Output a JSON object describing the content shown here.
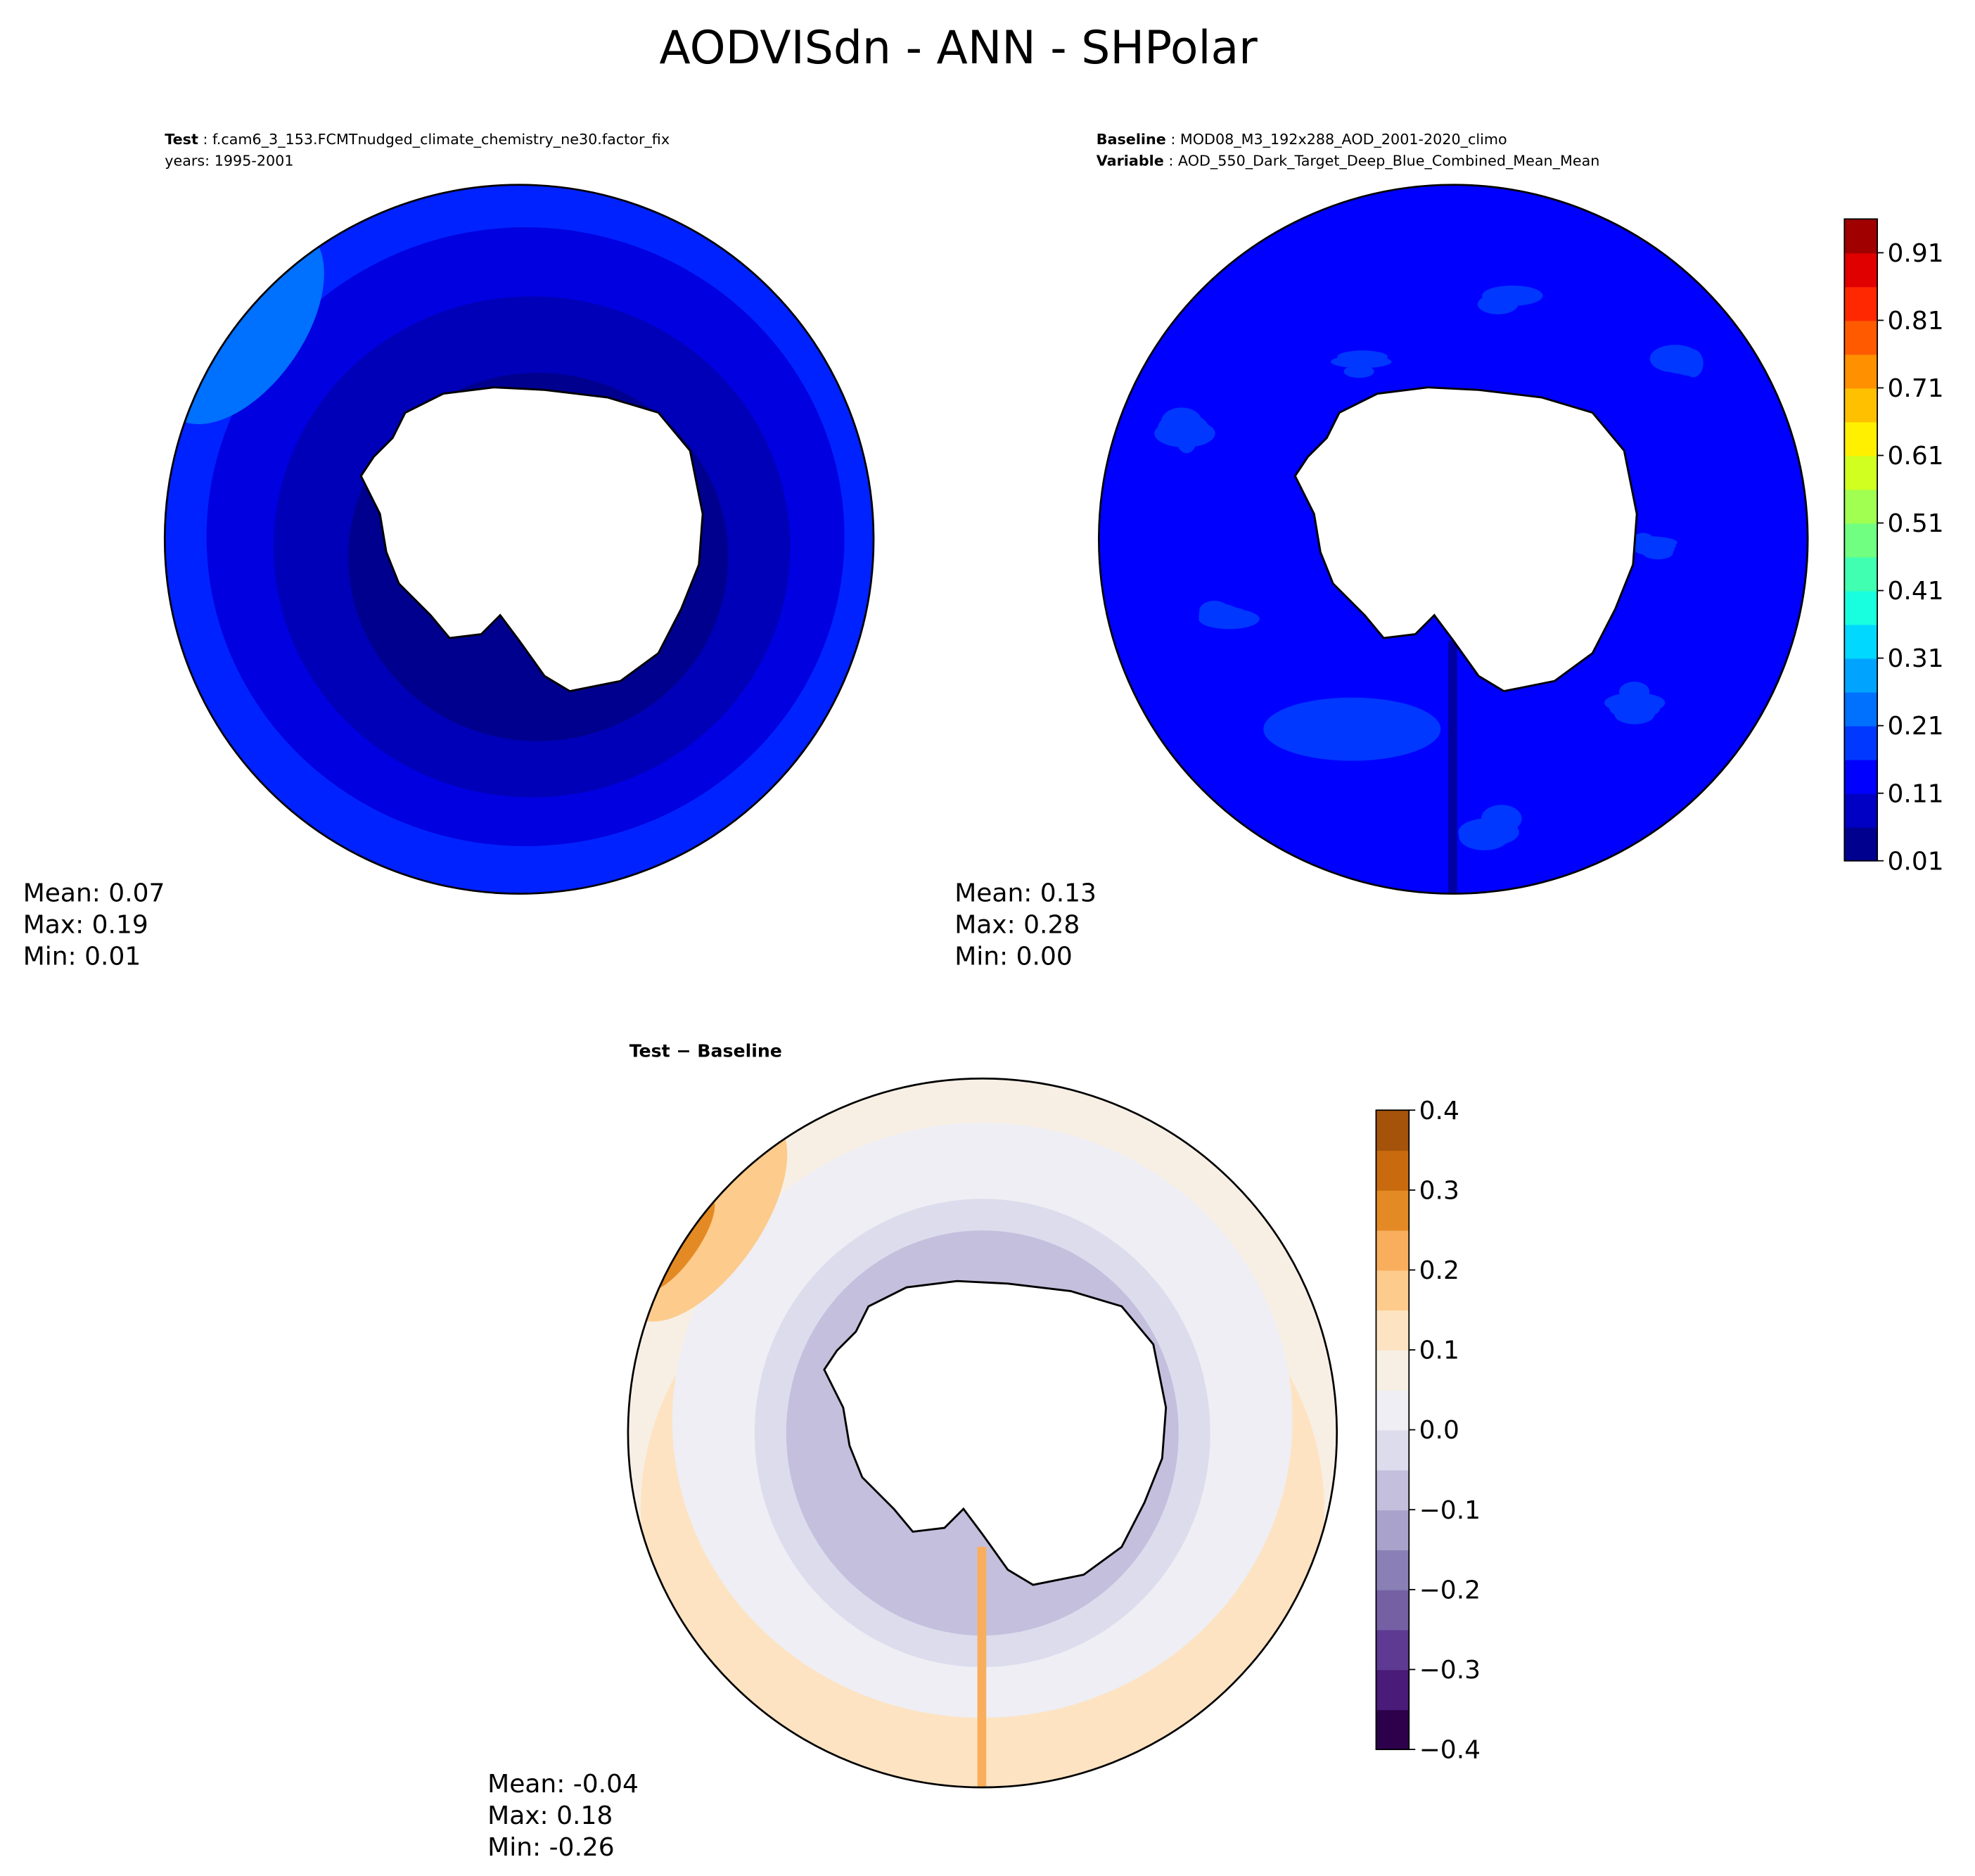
{
  "title": "AODVISdn - ANN - SHPolar",
  "chart_data": [
    {
      "type": "heatmap",
      "projection": "south polar stereographic",
      "header": {
        "label": "Test",
        "value": "f.cam6_3_153.FCMTnudged_climate_chemistry_ne30.factor_fix",
        "line2": "years: 1995-2001"
      },
      "stats": {
        "mean": "Mean:  0.07",
        "max": "Max:  0.19",
        "min": "Min:  0.01"
      },
      "bands": [
        {
          "value": 0.13,
          "color": "#0022ff"
        },
        {
          "value": 0.1,
          "color": "#0000e0"
        },
        {
          "value": 0.08,
          "color": "#0000b8"
        },
        {
          "value": 0.04,
          "color": "#00008f"
        }
      ]
    },
    {
      "type": "heatmap",
      "projection": "south polar stereographic",
      "header": {
        "label": "Baseline",
        "value": "MOD08_M3_192x288_AOD_2001-2020_climo",
        "label2": "Variable",
        "value2": "AOD_550_Dark_Target_Deep_Blue_Combined_Mean_Mean"
      },
      "stats": {
        "mean": "Mean:  0.13",
        "max": "Max:  0.28",
        "min": "Min:  0.00"
      },
      "bands": [
        {
          "value": 0.13,
          "color": "#0000ff"
        }
      ],
      "colorbar": {
        "levels_min": 0.01,
        "levels_max": 0.96,
        "step": 0.05,
        "ticks": [
          "0.01",
          "0.11",
          "0.21",
          "0.31",
          "0.41",
          "0.51",
          "0.61",
          "0.71",
          "0.81",
          "0.91"
        ],
        "colors": [
          "#00008f",
          "#0000c4",
          "#0000ff",
          "#0038ff",
          "#0070ff",
          "#00a4ff",
          "#00d8ff",
          "#18ffe0",
          "#40ffb0",
          "#70ff80",
          "#a0ff50",
          "#d0ff20",
          "#fff000",
          "#ffc000",
          "#ff9000",
          "#ff5a00",
          "#ff2800",
          "#e00000",
          "#a00000"
        ]
      }
    },
    {
      "type": "heatmap",
      "projection": "south polar stereographic",
      "header": {
        "label": "Test − Baseline"
      },
      "stats": {
        "mean": "Mean: -0.04",
        "max": "Max:  0.18",
        "min": "Min: -0.26"
      },
      "colorbar": {
        "levels_min": -0.4,
        "levels_max": 0.4,
        "step": 0.05,
        "ticks": [
          "−0.4",
          "−0.3",
          "−0.2",
          "−0.1",
          "0.0",
          "0.1",
          "0.2",
          "0.3",
          "0.4"
        ],
        "colors": [
          "#2d004b",
          "#4a1b78",
          "#5e3a92",
          "#7560a4",
          "#8a80b6",
          "#a9a3cc",
          "#c3bfdd",
          "#dcdced",
          "#eeeef4",
          "#f7efe4",
          "#fde3c2",
          "#fdcb8c",
          "#f8ae5c",
          "#e48a24",
          "#c86a0d",
          "#a5530a"
        ]
      }
    }
  ]
}
